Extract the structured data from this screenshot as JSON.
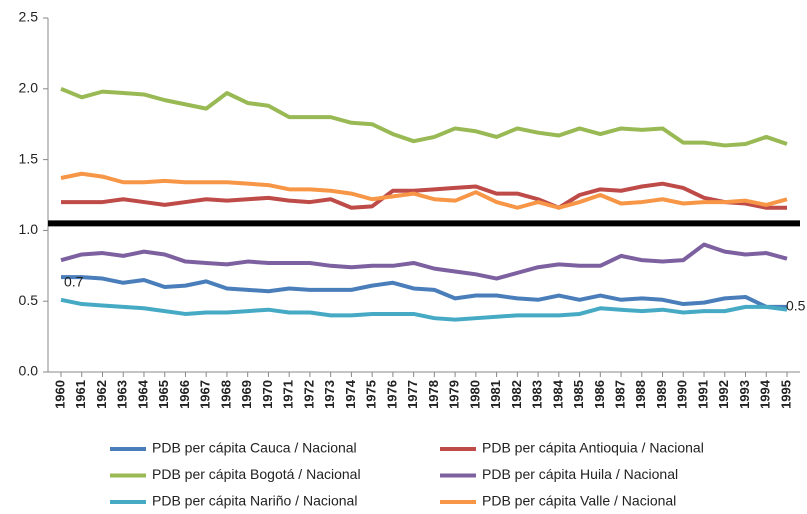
{
  "chart_data": {
    "type": "line",
    "categories": [
      "1960",
      "1961",
      "1962",
      "1963",
      "1964",
      "1965",
      "1966",
      "1967",
      "1968",
      "1969",
      "1970",
      "1971",
      "1972",
      "1973",
      "1974",
      "1975",
      "1976",
      "1977",
      "1978",
      "1979",
      "1980",
      "1981",
      "1982",
      "1983",
      "1984",
      "1985",
      "1986",
      "1987",
      "1988",
      "1989",
      "1990",
      "1991",
      "1992",
      "1993",
      "1994",
      "1995"
    ],
    "series": [
      {
        "name": "PDB per cápita Cauca / Nacional",
        "color": "#4a7ebb",
        "values": [
          0.67,
          0.67,
          0.66,
          0.63,
          0.65,
          0.6,
          0.61,
          0.64,
          0.59,
          0.58,
          0.57,
          0.59,
          0.58,
          0.58,
          0.58,
          0.61,
          0.63,
          0.59,
          0.58,
          0.52,
          0.54,
          0.54,
          0.52,
          0.51,
          0.54,
          0.51,
          0.54,
          0.51,
          0.52,
          0.51,
          0.48,
          0.49,
          0.52,
          0.53,
          0.46,
          0.46
        ]
      },
      {
        "name": "PDB per cápita Antioquia  / Nacional",
        "color": "#be4b48",
        "values": [
          1.2,
          1.2,
          1.2,
          1.22,
          1.2,
          1.18,
          1.2,
          1.22,
          1.21,
          1.22,
          1.23,
          1.21,
          1.2,
          1.22,
          1.16,
          1.17,
          1.28,
          1.28,
          1.29,
          1.3,
          1.31,
          1.26,
          1.26,
          1.22,
          1.16,
          1.25,
          1.29,
          1.28,
          1.31,
          1.33,
          1.3,
          1.23,
          1.2,
          1.19,
          1.16,
          1.16
        ]
      },
      {
        "name": "PDB per cápita Bogotá / Nacional",
        "color": "#98b954",
        "values": [
          2.0,
          1.94,
          1.98,
          1.97,
          1.96,
          1.92,
          1.89,
          1.86,
          1.97,
          1.9,
          1.88,
          1.8,
          1.8,
          1.8,
          1.76,
          1.75,
          1.68,
          1.63,
          1.66,
          1.72,
          1.7,
          1.66,
          1.72,
          1.69,
          1.67,
          1.72,
          1.68,
          1.72,
          1.71,
          1.72,
          1.62,
          1.62,
          1.6,
          1.61,
          1.66,
          1.61
        ]
      },
      {
        "name": "PDB per cápita Huila / Nacional",
        "color": "#7d60a0",
        "values": [
          0.79,
          0.83,
          0.84,
          0.82,
          0.85,
          0.83,
          0.78,
          0.77,
          0.76,
          0.78,
          0.77,
          0.77,
          0.77,
          0.75,
          0.74,
          0.75,
          0.75,
          0.77,
          0.73,
          0.71,
          0.69,
          0.66,
          0.7,
          0.74,
          0.76,
          0.75,
          0.75,
          0.82,
          0.79,
          0.78,
          0.79,
          0.9,
          0.85,
          0.83,
          0.84,
          0.8
        ]
      },
      {
        "name": "PDB per cápita Nariño / Nacional",
        "color": "#46aac5",
        "values": [
          0.51,
          0.48,
          0.47,
          0.46,
          0.45,
          0.43,
          0.41,
          0.42,
          0.42,
          0.43,
          0.44,
          0.42,
          0.42,
          0.4,
          0.4,
          0.41,
          0.41,
          0.41,
          0.38,
          0.37,
          0.38,
          0.39,
          0.4,
          0.4,
          0.4,
          0.41,
          0.45,
          0.44,
          0.43,
          0.44,
          0.42,
          0.43,
          0.43,
          0.46,
          0.46,
          0.44
        ]
      },
      {
        "name": "PDB per cápita Valle / Nacional",
        "color": "#f79646",
        "values": [
          1.37,
          1.4,
          1.38,
          1.34,
          1.34,
          1.35,
          1.34,
          1.34,
          1.34,
          1.33,
          1.32,
          1.29,
          1.29,
          1.28,
          1.26,
          1.22,
          1.24,
          1.26,
          1.22,
          1.21,
          1.27,
          1.2,
          1.16,
          1.2,
          1.16,
          1.2,
          1.25,
          1.19,
          1.2,
          1.22,
          1.19,
          1.2,
          1.2,
          1.21,
          1.18,
          1.22
        ]
      }
    ],
    "reference_line": {
      "value": 1.05,
      "color": "#000000"
    },
    "annotations": [
      "0.7",
      "0.5"
    ],
    "ylim": [
      0,
      2.5
    ],
    "yticks": [
      {
        "value": 0,
        "label": "0.0"
      },
      0.5,
      {
        "value": 1,
        "label": "1.0"
      },
      1.5,
      {
        "value": 2,
        "label": "2.0"
      },
      2.5
    ],
    "grid": false,
    "legend": "bottom"
  }
}
